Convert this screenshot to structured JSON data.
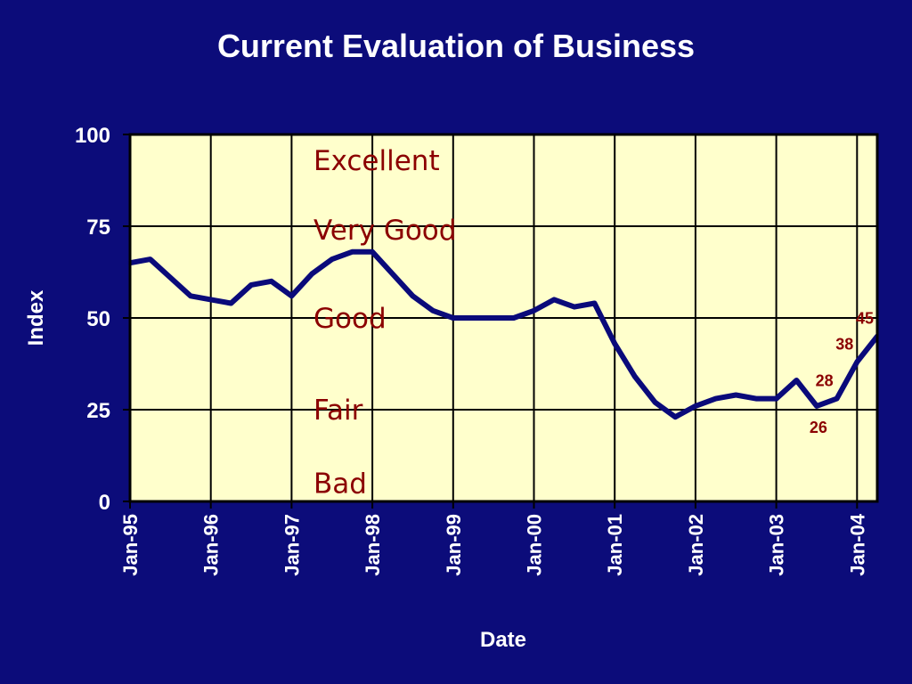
{
  "chart_data": {
    "type": "line",
    "title": "Current Evaluation of Business",
    "xlabel": "Date",
    "ylabel": "Index",
    "ylim": [
      0,
      100
    ],
    "yticks": [
      "0",
      "25",
      "50",
      "75",
      "100"
    ],
    "xticks": [
      "Jan-95",
      "Jan-96",
      "Jan-97",
      "Jan-98",
      "Jan-99",
      "Jan-00",
      "Jan-01",
      "Jan-02",
      "Jan-03",
      "Jan-04"
    ],
    "grid": true,
    "colors": {
      "background": "#0c0c7a",
      "plot_area": "#ffffcc",
      "line": "#0a0a7a",
      "annotation": "#8b0000"
    },
    "band_labels": [
      {
        "text": "Excellent",
        "y": 93
      },
      {
        "text": "Very Good",
        "y": 74
      },
      {
        "text": "Good",
        "y": 50
      },
      {
        "text": "Fair",
        "y": 25
      },
      {
        "text": "Bad",
        "y": 5
      }
    ],
    "series": [
      {
        "x": [
          "1995-01",
          "1995-04",
          "1995-07",
          "1995-10",
          "1996-01",
          "1996-04",
          "1996-07",
          "1996-10",
          "1997-01",
          "1997-04",
          "1997-07",
          "1997-10",
          "1998-01",
          "1998-04",
          "1998-07",
          "1998-10",
          "1999-01",
          "1999-04",
          "1999-07",
          "1999-10",
          "2000-01",
          "2000-04",
          "2000-07",
          "2000-10",
          "2001-01",
          "2001-04",
          "2001-07",
          "2001-10",
          "2002-01",
          "2002-04",
          "2002-07",
          "2002-10",
          "2003-01",
          "2003-04",
          "2003-07",
          "2003-10",
          "2004-01",
          "2004-04"
        ],
        "values": [
          65,
          66,
          61,
          56,
          55,
          54,
          59,
          60,
          56,
          62,
          66,
          68,
          68,
          62,
          56,
          52,
          50,
          50,
          50,
          50,
          52,
          55,
          53,
          54,
          43,
          34,
          27,
          23,
          26,
          28,
          29,
          28,
          28,
          33,
          26,
          28,
          38,
          45
        ]
      }
    ],
    "data_labels": [
      {
        "x": "2003-07",
        "y": 26,
        "text": "26",
        "position": "below"
      },
      {
        "x": "2003-10",
        "y": 28,
        "text": "28",
        "position": "above-left"
      },
      {
        "x": "2004-01",
        "y": 38,
        "text": "38",
        "position": "above-left"
      },
      {
        "x": "2004-04",
        "y": 45,
        "text": "45",
        "position": "above-left"
      }
    ]
  }
}
